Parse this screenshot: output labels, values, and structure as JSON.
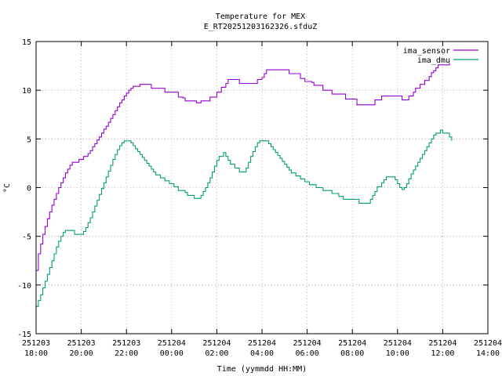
{
  "chart_data": {
    "type": "line",
    "title": "Temperature for MEX",
    "subtitle": "E_RT20251203162326.sfduZ",
    "xlabel": "Time (yymmdd HH:MM)",
    "ylabel": "°C",
    "xlim": [
      0,
      20
    ],
    "ylim": [
      -15,
      15
    ],
    "x_unit": "hours since 251203 18:00",
    "yticks": [
      15,
      10,
      5,
      0,
      -5,
      -10,
      -15
    ],
    "xticks": [
      {
        "x": 0,
        "date": "251203",
        "time": "18:00"
      },
      {
        "x": 2,
        "date": "251203",
        "time": "20:00"
      },
      {
        "x": 4,
        "date": "251203",
        "time": "22:00"
      },
      {
        "x": 6,
        "date": "251204",
        "time": "00:00"
      },
      {
        "x": 8,
        "date": "251204",
        "time": "02:00"
      },
      {
        "x": 10,
        "date": "251204",
        "time": "04:00"
      },
      {
        "x": 12,
        "date": "251204",
        "time": "06:00"
      },
      {
        "x": 14,
        "date": "251204",
        "time": "08:00"
      },
      {
        "x": 16,
        "date": "251204",
        "time": "10:00"
      },
      {
        "x": 18,
        "date": "251204",
        "time": "12:00"
      },
      {
        "x": 20,
        "date": "251204",
        "time": "14:00"
      }
    ],
    "grid": true,
    "legend_position": "top-right",
    "series": [
      {
        "name": "ima_sensor",
        "color": "#9400d3",
        "points": [
          [
            0.0,
            -8.5
          ],
          [
            0.1,
            -6.8
          ],
          [
            0.2,
            -5.8
          ],
          [
            0.3,
            -4.8
          ],
          [
            0.4,
            -4.0
          ],
          [
            0.5,
            -3.2
          ],
          [
            0.6,
            -2.5
          ],
          [
            0.7,
            -1.8
          ],
          [
            0.8,
            -1.2
          ],
          [
            0.9,
            -0.6
          ],
          [
            1.0,
            0.0
          ],
          [
            1.1,
            0.5
          ],
          [
            1.2,
            1.0
          ],
          [
            1.3,
            1.5
          ],
          [
            1.4,
            1.9
          ],
          [
            1.5,
            2.3
          ],
          [
            1.6,
            2.6
          ],
          [
            1.8,
            2.6
          ],
          [
            1.9,
            2.9
          ],
          [
            2.0,
            2.9
          ],
          [
            2.1,
            3.2
          ],
          [
            2.2,
            3.2
          ],
          [
            2.3,
            3.5
          ],
          [
            2.4,
            3.8
          ],
          [
            2.5,
            4.2
          ],
          [
            2.6,
            4.5
          ],
          [
            2.7,
            4.9
          ],
          [
            2.8,
            5.2
          ],
          [
            2.9,
            5.6
          ],
          [
            3.0,
            6.0
          ],
          [
            3.1,
            6.3
          ],
          [
            3.2,
            6.7
          ],
          [
            3.3,
            7.1
          ],
          [
            3.4,
            7.5
          ],
          [
            3.5,
            7.9
          ],
          [
            3.6,
            8.3
          ],
          [
            3.7,
            8.7
          ],
          [
            3.8,
            9.0
          ],
          [
            3.9,
            9.4
          ],
          [
            4.0,
            9.7
          ],
          [
            4.1,
            10.0
          ],
          [
            4.2,
            10.2
          ],
          [
            4.3,
            10.4
          ],
          [
            4.5,
            10.4
          ],
          [
            4.6,
            10.6
          ],
          [
            5.0,
            10.6
          ],
          [
            5.1,
            10.2
          ],
          [
            5.6,
            10.2
          ],
          [
            5.7,
            9.8
          ],
          [
            6.2,
            9.8
          ],
          [
            6.3,
            9.3
          ],
          [
            6.5,
            9.2
          ],
          [
            6.6,
            8.9
          ],
          [
            7.0,
            8.9
          ],
          [
            7.1,
            8.7
          ],
          [
            7.2,
            8.7
          ],
          [
            7.3,
            8.9
          ],
          [
            7.6,
            8.9
          ],
          [
            7.7,
            9.3
          ],
          [
            7.9,
            9.3
          ],
          [
            8.0,
            9.8
          ],
          [
            8.2,
            10.3
          ],
          [
            8.4,
            10.7
          ],
          [
            8.5,
            11.1
          ],
          [
            8.9,
            11.1
          ],
          [
            9.0,
            10.7
          ],
          [
            9.7,
            10.7
          ],
          [
            9.8,
            11.1
          ],
          [
            10.0,
            11.3
          ],
          [
            10.1,
            11.7
          ],
          [
            10.2,
            12.1
          ],
          [
            11.1,
            12.1
          ],
          [
            11.2,
            11.7
          ],
          [
            11.6,
            11.7
          ],
          [
            11.7,
            11.2
          ],
          [
            11.9,
            10.9
          ],
          [
            12.2,
            10.8
          ],
          [
            12.3,
            10.5
          ],
          [
            12.6,
            10.5
          ],
          [
            12.7,
            10.0
          ],
          [
            13.0,
            10.0
          ],
          [
            13.1,
            9.6
          ],
          [
            13.6,
            9.6
          ],
          [
            13.7,
            9.1
          ],
          [
            14.1,
            9.1
          ],
          [
            14.2,
            8.5
          ],
          [
            14.9,
            8.5
          ],
          [
            15.0,
            9.0
          ],
          [
            15.2,
            9.0
          ],
          [
            15.3,
            9.4
          ],
          [
            16.1,
            9.4
          ],
          [
            16.2,
            9.0
          ],
          [
            16.4,
            9.0
          ],
          [
            16.5,
            9.4
          ],
          [
            16.7,
            9.8
          ],
          [
            16.8,
            10.2
          ],
          [
            17.0,
            10.6
          ],
          [
            17.2,
            11.0
          ],
          [
            17.4,
            11.4
          ],
          [
            17.5,
            11.8
          ],
          [
            17.6,
            12.0
          ],
          [
            17.7,
            12.3
          ],
          [
            17.8,
            12.6
          ],
          [
            18.2,
            12.6
          ],
          [
            18.3,
            12.8
          ]
        ]
      },
      {
        "name": "ima_dmu",
        "color": "#009e73",
        "points": [
          [
            0.0,
            -12.2
          ],
          [
            0.1,
            -11.6
          ],
          [
            0.2,
            -11.0
          ],
          [
            0.3,
            -10.3
          ],
          [
            0.4,
            -9.6
          ],
          [
            0.5,
            -8.9
          ],
          [
            0.6,
            -8.2
          ],
          [
            0.7,
            -7.5
          ],
          [
            0.8,
            -6.8
          ],
          [
            0.9,
            -6.1
          ],
          [
            1.0,
            -5.5
          ],
          [
            1.1,
            -5.0
          ],
          [
            1.2,
            -4.6
          ],
          [
            1.3,
            -4.4
          ],
          [
            1.6,
            -4.4
          ],
          [
            1.7,
            -4.8
          ],
          [
            2.0,
            -4.8
          ],
          [
            2.1,
            -4.5
          ],
          [
            2.2,
            -4.1
          ],
          [
            2.3,
            -3.6
          ],
          [
            2.4,
            -3.1
          ],
          [
            2.5,
            -2.5
          ],
          [
            2.6,
            -1.9
          ],
          [
            2.7,
            -1.3
          ],
          [
            2.8,
            -0.7
          ],
          [
            2.9,
            -0.1
          ],
          [
            3.0,
            0.5
          ],
          [
            3.1,
            1.1
          ],
          [
            3.2,
            1.7
          ],
          [
            3.3,
            2.3
          ],
          [
            3.4,
            2.9
          ],
          [
            3.5,
            3.4
          ],
          [
            3.6,
            3.9
          ],
          [
            3.7,
            4.3
          ],
          [
            3.8,
            4.6
          ],
          [
            3.9,
            4.8
          ],
          [
            4.1,
            4.8
          ],
          [
            4.2,
            4.6
          ],
          [
            4.3,
            4.3
          ],
          [
            4.4,
            4.0
          ],
          [
            4.5,
            3.7
          ],
          [
            4.6,
            3.4
          ],
          [
            4.7,
            3.1
          ],
          [
            4.8,
            2.8
          ],
          [
            4.9,
            2.5
          ],
          [
            5.0,
            2.2
          ],
          [
            5.1,
            1.9
          ],
          [
            5.2,
            1.6
          ],
          [
            5.3,
            1.3
          ],
          [
            5.5,
            1.0
          ],
          [
            5.7,
            0.7
          ],
          [
            5.9,
            0.4
          ],
          [
            6.1,
            0.1
          ],
          [
            6.3,
            -0.3
          ],
          [
            6.6,
            -0.5
          ],
          [
            6.7,
            -0.8
          ],
          [
            6.9,
            -0.8
          ],
          [
            7.0,
            -1.1
          ],
          [
            7.2,
            -1.1
          ],
          [
            7.3,
            -0.8
          ],
          [
            7.4,
            -0.4
          ],
          [
            7.5,
            0.0
          ],
          [
            7.6,
            0.5
          ],
          [
            7.7,
            1.0
          ],
          [
            7.8,
            1.6
          ],
          [
            7.9,
            2.2
          ],
          [
            8.0,
            2.8
          ],
          [
            8.1,
            3.2
          ],
          [
            8.3,
            3.6
          ],
          [
            8.4,
            3.2
          ],
          [
            8.5,
            2.8
          ],
          [
            8.6,
            2.4
          ],
          [
            8.8,
            2.0
          ],
          [
            9.0,
            1.6
          ],
          [
            9.2,
            1.6
          ],
          [
            9.3,
            2.0
          ],
          [
            9.4,
            2.6
          ],
          [
            9.5,
            3.2
          ],
          [
            9.6,
            3.7
          ],
          [
            9.7,
            4.2
          ],
          [
            9.8,
            4.6
          ],
          [
            9.9,
            4.8
          ],
          [
            10.2,
            4.8
          ],
          [
            10.3,
            4.5
          ],
          [
            10.4,
            4.2
          ],
          [
            10.5,
            3.9
          ],
          [
            10.6,
            3.6
          ],
          [
            10.7,
            3.3
          ],
          [
            10.8,
            3.0
          ],
          [
            10.9,
            2.7
          ],
          [
            11.0,
            2.4
          ],
          [
            11.1,
            2.1
          ],
          [
            11.2,
            1.8
          ],
          [
            11.3,
            1.5
          ],
          [
            11.5,
            1.2
          ],
          [
            11.7,
            0.9
          ],
          [
            11.9,
            0.6
          ],
          [
            12.1,
            0.3
          ],
          [
            12.4,
            0.0
          ],
          [
            12.7,
            -0.3
          ],
          [
            13.1,
            -0.6
          ],
          [
            13.4,
            -0.9
          ],
          [
            13.6,
            -1.2
          ],
          [
            14.2,
            -1.2
          ],
          [
            14.3,
            -1.6
          ],
          [
            14.7,
            -1.6
          ],
          [
            14.8,
            -1.2
          ],
          [
            14.9,
            -0.8
          ],
          [
            15.0,
            -0.4
          ],
          [
            15.1,
            0.1
          ],
          [
            15.3,
            0.5
          ],
          [
            15.4,
            0.8
          ],
          [
            15.5,
            1.1
          ],
          [
            15.8,
            1.1
          ],
          [
            15.9,
            0.8
          ],
          [
            16.0,
            0.4
          ],
          [
            16.1,
            0.0
          ],
          [
            16.2,
            -0.2
          ],
          [
            16.3,
            0.0
          ],
          [
            16.4,
            0.4
          ],
          [
            16.5,
            0.9
          ],
          [
            16.6,
            1.4
          ],
          [
            16.7,
            1.8
          ],
          [
            16.8,
            2.2
          ],
          [
            16.9,
            2.6
          ],
          [
            17.0,
            3.0
          ],
          [
            17.1,
            3.4
          ],
          [
            17.2,
            3.8
          ],
          [
            17.3,
            4.2
          ],
          [
            17.4,
            4.6
          ],
          [
            17.5,
            5.0
          ],
          [
            17.6,
            5.4
          ],
          [
            17.7,
            5.6
          ],
          [
            17.9,
            5.9
          ],
          [
            18.0,
            5.6
          ],
          [
            18.2,
            5.6
          ],
          [
            18.3,
            5.2
          ],
          [
            18.4,
            4.8
          ]
        ]
      }
    ]
  }
}
